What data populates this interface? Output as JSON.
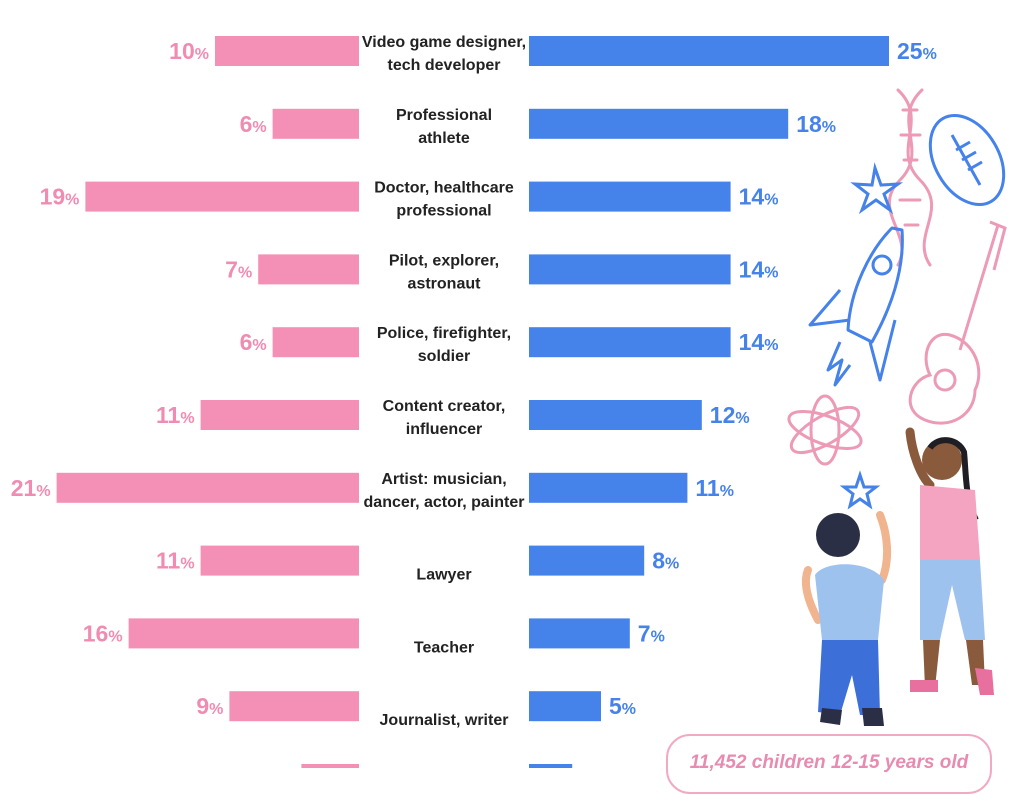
{
  "chart_data": {
    "type": "bar",
    "categories": [
      [
        "Video game designer,",
        "tech developer"
      ],
      [
        "Professional",
        "athlete"
      ],
      [
        "Doctor, healthcare",
        "professional"
      ],
      [
        "Pilot, explorer,",
        "astronaut"
      ],
      [
        "Police, firefighter,",
        "soldier"
      ],
      [
        "Content creator,",
        "influencer"
      ],
      [
        "Artist: musician,",
        "dancer, actor, painter"
      ],
      [
        "Lawyer"
      ],
      [
        "Teacher"
      ],
      [
        "Journalist, writer"
      ],
      [
        ""
      ]
    ],
    "series": [
      {
        "values": [
          10,
          6,
          19,
          7,
          6,
          11,
          21,
          11,
          16,
          9,
          4
        ],
        "color": "#f490b5",
        "label_color": "#f08cb2",
        "side": "left"
      },
      {
        "values": [
          25,
          18,
          14,
          14,
          14,
          12,
          11,
          8,
          7,
          5,
          3
        ],
        "color": "#4582ea",
        "label_color": "#4582ea",
        "side": "right"
      }
    ],
    "unit_suffix": "%",
    "title": "",
    "xlabel": "",
    "ylabel": ""
  },
  "footer": {
    "sample_note": "11,452 children 12-15 years old"
  }
}
